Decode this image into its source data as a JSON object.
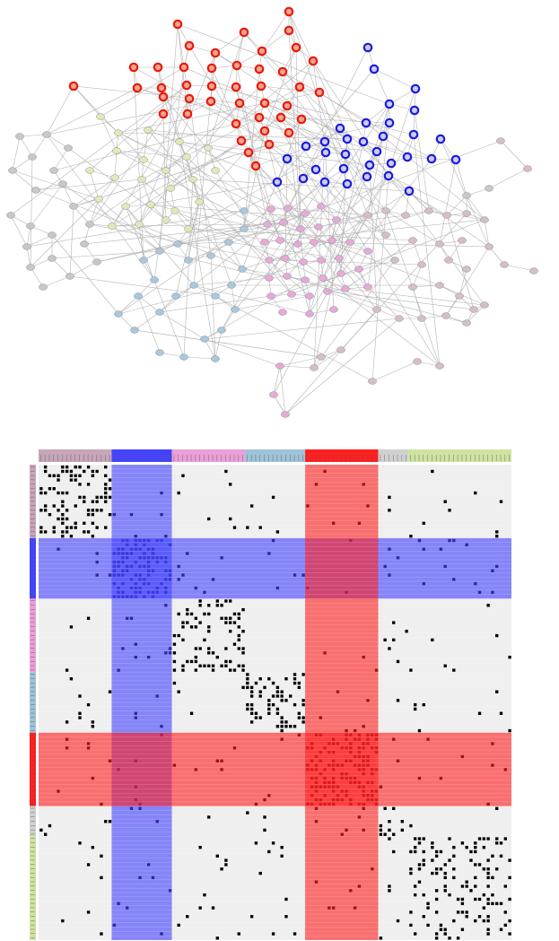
{
  "colors": {
    "edge": "#b4b4b4",
    "red_ring": "#e81a0c",
    "red_fill": "#f2a38f",
    "blue_ring": "#1a1ae0",
    "blue_fill": "#c9cdf0",
    "pink": "#e6a9d8",
    "lightblue": "#a9c8dc",
    "mauve": "#d6bdc8",
    "lightgreen": "#dfeab8",
    "grey": "#c8c8c8",
    "salmon": "#f3c4bd",
    "matrix_background": "#efefef",
    "band_blue": "#4444ff",
    "band_red": "#ff3b3b",
    "dot": "#000000"
  },
  "network": {
    "communities": [
      {
        "key": "red",
        "highlighted": true
      },
      {
        "key": "blue",
        "highlighted": true
      },
      {
        "key": "pink",
        "highlighted": false
      },
      {
        "key": "lightblue",
        "highlighted": false
      },
      {
        "key": "mauve",
        "highlighted": false
      },
      {
        "key": "lightgreen",
        "highlighted": false
      },
      {
        "key": "grey",
        "highlighted": false
      }
    ]
  },
  "matrix": {
    "blocks": [
      {
        "key": "mauve",
        "color": "#c7a6b8",
        "size": 17
      },
      {
        "key": "blue",
        "color": "#4444ff",
        "size": 14
      },
      {
        "key": "pink",
        "color": "#ea9fd6",
        "size": 17
      },
      {
        "key": "lightblue",
        "color": "#9fc3d8",
        "size": 14
      },
      {
        "key": "red",
        "color": "#ff2020",
        "size": 17
      },
      {
        "key": "grey",
        "color": "#d0d0d0",
        "size": 7
      },
      {
        "key": "lightgreen",
        "color": "#cfe3a0",
        "size": 24
      }
    ],
    "highlighted_blocks": [
      "blue",
      "red"
    ]
  }
}
